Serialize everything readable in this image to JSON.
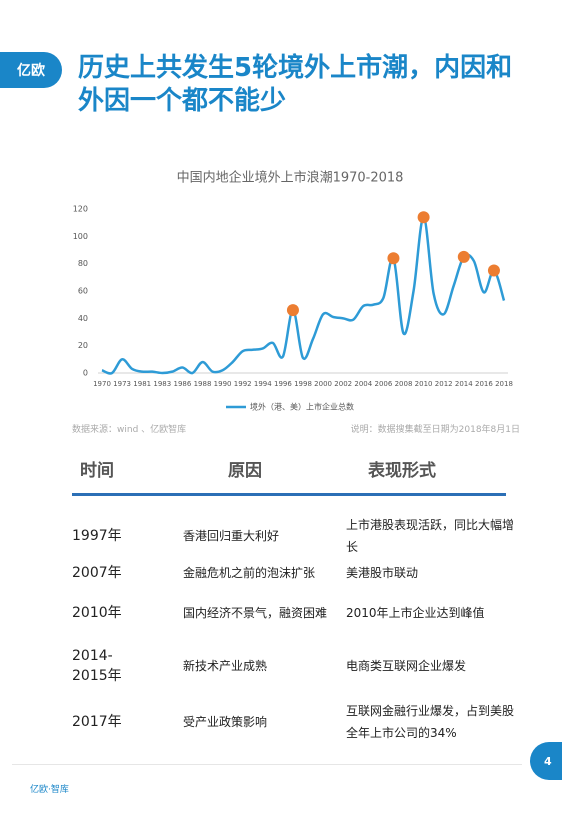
{
  "header": {
    "logo": "亿欧",
    "title": "历史上共发生5轮境外上市潮，内因和外因一个都不能少"
  },
  "chart_data": {
    "type": "line",
    "title": "中国内地企业境外上市浪潮1970-2018",
    "categories": [
      "1970",
      null,
      "1973",
      null,
      "1981",
      null,
      "1983",
      null,
      "1986",
      null,
      "1988",
      null,
      "1990",
      null,
      "1992",
      null,
      "1994",
      null,
      "1996",
      null,
      "1998",
      null,
      "2000",
      null,
      "2002",
      null,
      "2004",
      null,
      "2006",
      null,
      "2008",
      null,
      "2010",
      null,
      "2012",
      null,
      "2014",
      null,
      "2016",
      null,
      "2018"
    ],
    "series": [
      {
        "name": "境外（港、美）上市企业总数",
        "color": "#2e9bd6",
        "values": [
          2,
          0,
          10,
          3,
          1,
          1,
          0,
          1,
          4,
          0,
          8,
          1,
          2,
          8,
          16,
          17,
          18,
          22,
          12,
          46,
          11,
          25,
          43,
          41,
          40,
          39,
          49,
          50,
          55,
          84,
          29,
          60,
          114,
          58,
          43,
          64,
          85,
          82,
          59,
          75,
          53
        ]
      }
    ],
    "markers": {
      "color": "#ec7d31",
      "indices": [
        19,
        29,
        32,
        36,
        39
      ]
    },
    "ylim": [
      0,
      120
    ],
    "yticks": [
      0,
      20,
      40,
      60,
      80,
      100,
      120
    ],
    "smooth": true,
    "legend": "bottom"
  },
  "source": "数据来源：wind 、亿欧智库",
  "note": "说明：数据搜集截至日期为2018年8月1日",
  "table": {
    "header": [
      "时间",
      "原因",
      "表现形式"
    ],
    "rows": [
      [
        "1997年",
        "香港回归重大利好",
        "上市港股表现活跃，同比大幅增长"
      ],
      [
        "2007年",
        "金融危机之前的泡沫扩张",
        "美港股市联动"
      ],
      [
        "2010年",
        "国内经济不景气，融资困难",
        "2010年上市企业达到峰值"
      ],
      [
        "2014-2015年",
        "新技术产业成熟",
        "电商类互联网企业爆发"
      ],
      [
        "2017年",
        "受产业政策影响",
        "互联网金融行业爆发，占到美股全年上市公司的34%"
      ]
    ]
  },
  "page_number": "4",
  "footer": {
    "logo": "亿欧·智库"
  }
}
